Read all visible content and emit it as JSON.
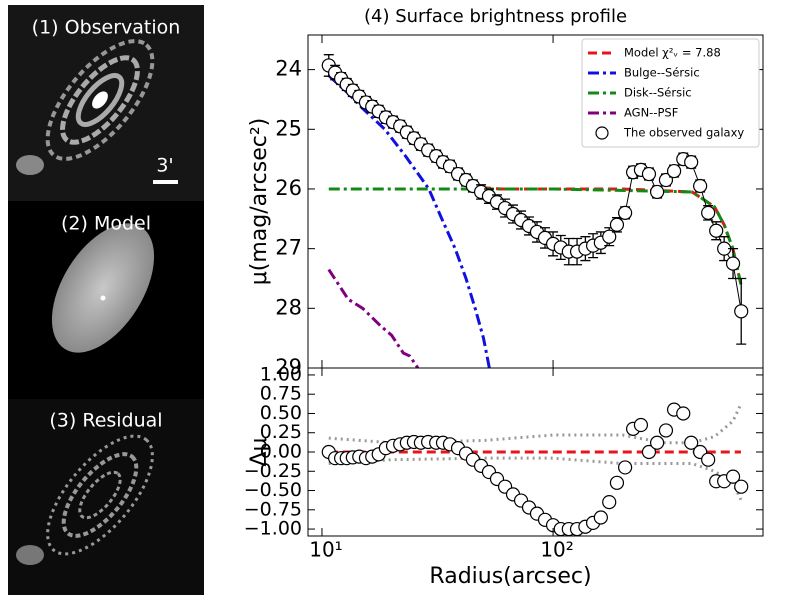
{
  "panels": [
    "(1) Observation",
    "(2) Model",
    "(3) Residual"
  ],
  "scale_label": "3'",
  "chart_data": [
    {
      "type": "line",
      "title": "(4) Surface brightness profile",
      "ylabel": "μ(mag/arcsec²)",
      "xscale": "log",
      "xlim": [
        8.7,
        810
      ],
      "ylim": [
        23.42,
        29
      ],
      "yinvert": true,
      "xticks": [
        {
          "value": 10,
          "label": ""
        },
        {
          "value": 100,
          "label": ""
        }
      ],
      "yticks": [
        24,
        25,
        26,
        27,
        28,
        29
      ],
      "legend": "upper right",
      "series": [
        {
          "name": "Model χ²ᵥ = 7.88",
          "color": "#e8141c",
          "style": "dashed",
          "x": [
            10.7,
            15,
            20,
            30,
            40,
            50,
            60,
            100,
            200,
            400,
            500,
            550,
            600,
            650
          ],
          "values": [
            23.95,
            24.5,
            24.9,
            25.45,
            25.8,
            25.98,
            26.0,
            26.0,
            26.0,
            26.05,
            26.3,
            26.6,
            27.0,
            27.6
          ]
        },
        {
          "name": "Bulge--Sérsic",
          "color": "#1010e0",
          "style": "dashdot",
          "x": [
            10.7,
            13,
            15,
            18.7,
            23,
            29,
            33,
            37.7,
            42,
            46,
            50,
            53
          ],
          "values": [
            24.1,
            24.4,
            24.65,
            25.0,
            25.45,
            26.0,
            26.5,
            27.0,
            27.5,
            28.0,
            28.5,
            29.0
          ]
        },
        {
          "name": "Disk--Sérsic",
          "color": "#148a14",
          "style": "dashdot",
          "x": [
            10.7,
            100,
            400,
            500,
            550,
            600,
            650
          ],
          "values": [
            26.0,
            26.0,
            26.05,
            26.3,
            26.6,
            27.0,
            27.6
          ]
        },
        {
          "name": "AGN--PSF",
          "color": "#800080",
          "style": "dashdot",
          "x": [
            10.7,
            13,
            15,
            18,
            20,
            22.5,
            24,
            26
          ],
          "values": [
            27.35,
            27.85,
            28.0,
            28.3,
            28.45,
            28.75,
            28.8,
            29.0
          ]
        },
        {
          "name": "The observed galaxy",
          "color": "#000000",
          "style": "points-line",
          "x": [
            10.7,
            11.4,
            12.1,
            12.8,
            13.6,
            14.5,
            15.5,
            16.5,
            17.6,
            18.9,
            20.3,
            21.8,
            23.3,
            25.0,
            26.8,
            28.8,
            31.2,
            33.4,
            35.8,
            38.8,
            42.0,
            45.0,
            48.8,
            52.8,
            57.2,
            62.0,
            67.1,
            72.7,
            78.7,
            85.2,
            92.3,
            100,
            108,
            117,
            127,
            138,
            149,
            161,
            175,
            189,
            205,
            222,
            240,
            260,
            282,
            308,
            334,
            366,
            396,
            433,
            469,
            508,
            550,
            601,
            652
          ],
          "values": [
            23.93,
            24.05,
            24.15,
            24.25,
            24.35,
            24.45,
            24.55,
            24.62,
            24.7,
            24.8,
            24.88,
            24.95,
            25.05,
            25.15,
            25.25,
            25.35,
            25.45,
            25.55,
            25.62,
            25.75,
            25.85,
            25.95,
            26.05,
            26.12,
            26.22,
            26.32,
            26.42,
            26.52,
            26.62,
            26.72,
            26.82,
            26.92,
            26.98,
            27.05,
            27.05,
            27.0,
            26.95,
            26.9,
            26.8,
            26.6,
            26.4,
            25.72,
            25.68,
            25.75,
            26.05,
            25.85,
            25.7,
            25.5,
            25.55,
            25.95,
            26.4,
            26.7,
            27.0,
            27.25,
            28.05
          ],
          "errors": [
            0.18,
            0.12,
            0.1,
            0.1,
            0.1,
            0.1,
            0.1,
            0.1,
            0.1,
            0.1,
            0.1,
            0.1,
            0.1,
            0.1,
            0.1,
            0.1,
            0.1,
            0.1,
            0.1,
            0.1,
            0.1,
            0.1,
            0.12,
            0.12,
            0.12,
            0.15,
            0.15,
            0.15,
            0.15,
            0.17,
            0.17,
            0.2,
            0.2,
            0.22,
            0.22,
            0.2,
            0.2,
            0.18,
            0.15,
            0.12,
            0.1,
            0.1,
            0.1,
            0.1,
            0.1,
            0.1,
            0.1,
            0.1,
            0.1,
            0.1,
            0.12,
            0.15,
            0.2,
            0.25,
            0.55
          ]
        }
      ]
    },
    {
      "type": "line",
      "xlabel": "Radius(arcsec)",
      "ylabel": "Δμ",
      "xscale": "log",
      "xlim": [
        8.7,
        810
      ],
      "ylim": [
        -1.09,
        1.09
      ],
      "xticks": [
        {
          "value": 10,
          "label": "10¹"
        },
        {
          "value": 100,
          "label": "10²"
        }
      ],
      "yticks": [
        {
          "value": -1,
          "label": "−1.00"
        },
        {
          "value": -0.75,
          "label": "−0.75"
        },
        {
          "value": -0.5,
          "label": "−0.50"
        },
        {
          "value": -0.25,
          "label": "−0.25"
        },
        {
          "value": 0,
          "label": "0.00"
        },
        {
          "value": 0.25,
          "label": "0.25"
        },
        {
          "value": 0.5,
          "label": "0.50"
        },
        {
          "value": 0.75,
          "label": "0.75"
        },
        {
          "value": 1,
          "label": "1.00"
        }
      ],
      "series": [
        {
          "color": "#999999",
          "style": "dotted",
          "x": [
            10.7,
            20,
            50,
            100,
            200,
            300,
            400,
            500,
            600,
            650
          ],
          "values": [
            0.18,
            0.12,
            0.15,
            0.22,
            0.22,
            0.12,
            0.12,
            0.2,
            0.4,
            0.62
          ]
        },
        {
          "color": "#999999",
          "style": "dotted",
          "x": [
            10.7,
            20,
            50,
            100,
            200,
            300,
            400,
            500,
            600,
            650
          ],
          "values": [
            -0.15,
            -0.1,
            -0.08,
            -0.08,
            -0.15,
            -0.15,
            -0.15,
            -0.25,
            -0.4,
            -0.62
          ]
        },
        {
          "color": "#e8141c",
          "style": "dashed",
          "x": [
            10.7,
            650
          ],
          "values": [
            0,
            0
          ]
        },
        {
          "color": "#000000",
          "style": "points",
          "x": [
            10.7,
            11.4,
            12.1,
            12.8,
            13.6,
            14.5,
            15.5,
            16.5,
            17.6,
            18.9,
            20.3,
            21.8,
            23.3,
            25.0,
            26.8,
            28.8,
            31.2,
            33.4,
            35.8,
            38.8,
            42.0,
            45.0,
            48.8,
            52.8,
            57.2,
            62.0,
            67.1,
            72.7,
            78.7,
            85.2,
            92.3,
            100,
            108,
            117,
            127,
            138,
            149,
            161,
            175,
            189,
            205,
            222,
            240,
            260,
            282,
            308,
            334,
            366,
            396,
            433,
            469,
            508,
            550,
            601,
            652
          ],
          "values": [
            0.0,
            -0.08,
            -0.08,
            -0.08,
            -0.07,
            -0.06,
            -0.08,
            -0.06,
            -0.03,
            0.05,
            0.08,
            0.1,
            0.12,
            0.13,
            0.12,
            0.13,
            0.12,
            0.12,
            0.1,
            0.05,
            -0.02,
            -0.1,
            -0.18,
            -0.26,
            -0.35,
            -0.45,
            -0.55,
            -0.63,
            -0.72,
            -0.8,
            -0.88,
            -0.95,
            -1.0,
            -1.0,
            -1.0,
            -0.97,
            -0.92,
            -0.85,
            -0.65,
            -0.4,
            -0.2,
            0.3,
            0.35,
            0.0,
            0.12,
            0.28,
            0.55,
            0.5,
            0.12,
            0.0,
            -0.1,
            -0.38,
            -0.38,
            -0.32,
            -0.45
          ]
        }
      ]
    }
  ]
}
